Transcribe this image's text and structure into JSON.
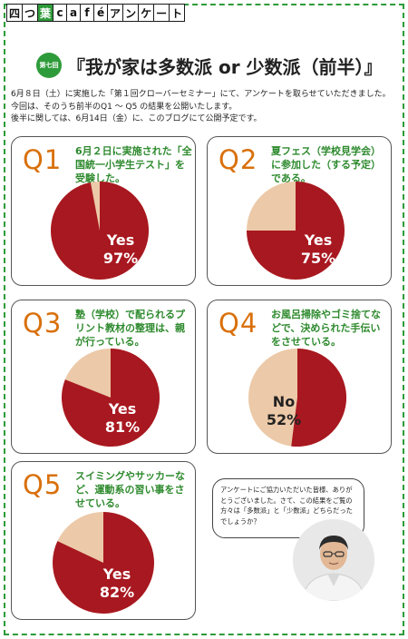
{
  "header": {
    "chars": [
      "四",
      "つ",
      "葉",
      "c",
      "a",
      "f",
      "é",
      "ア",
      "ン",
      "ケ",
      "ー",
      "ト"
    ],
    "accent_index": 2,
    "accent_color": "#2e9b3a"
  },
  "title": {
    "badge": "第七回",
    "text": "『我が家は多数派 or 少数派（前半）』"
  },
  "intro": {
    "lines": [
      "6月８日（土）に実施した「第１回クローバーセミナー」にて、アンケートを取らせていただきました。",
      "今回は、そのうち前半のQ1 ～ Q5 の結果を公開いたします。",
      "後半に関しては、6月14日（金）に、このブログにて公開予定です。"
    ]
  },
  "colors": {
    "pie_main": "#a81820",
    "pie_other": "#ecc9a8",
    "question_label": "#d9700b",
    "question_text": "#2e8a2e"
  },
  "questions": [
    {
      "label": "Q1",
      "text": "6月２日に実施された「全国統一小学生テスト」を受験した。",
      "answer": "Yes",
      "percent": 97,
      "percent_text": "97%"
    },
    {
      "label": "Q2",
      "text": "夏フェス（学校見学会）に参加した（する予定）である。",
      "answer": "Yes",
      "percent": 75,
      "percent_text": "75%"
    },
    {
      "label": "Q3",
      "text": "塾（学校）で配られるプリント教材の整理は、親が行っている。",
      "answer": "Yes",
      "percent": 81,
      "percent_text": "81%"
    },
    {
      "label": "Q4",
      "text": "お風呂掃除やゴミ捨てなどで、決められた手伝いをさせている。",
      "answer": "No",
      "percent": 52,
      "percent_text": "52%"
    },
    {
      "label": "Q5",
      "text": "スイミングやサッカーなど、運動系の習い事をさせている。",
      "answer": "Yes",
      "percent": 82,
      "percent_text": "82%"
    }
  ],
  "bubble": {
    "text": "アンケートにご協力いただいた皆様、ありがとうございました。さて、この結果をご覧の方々は「多数派」と「少数派」どちらだったでしょうか？"
  }
}
